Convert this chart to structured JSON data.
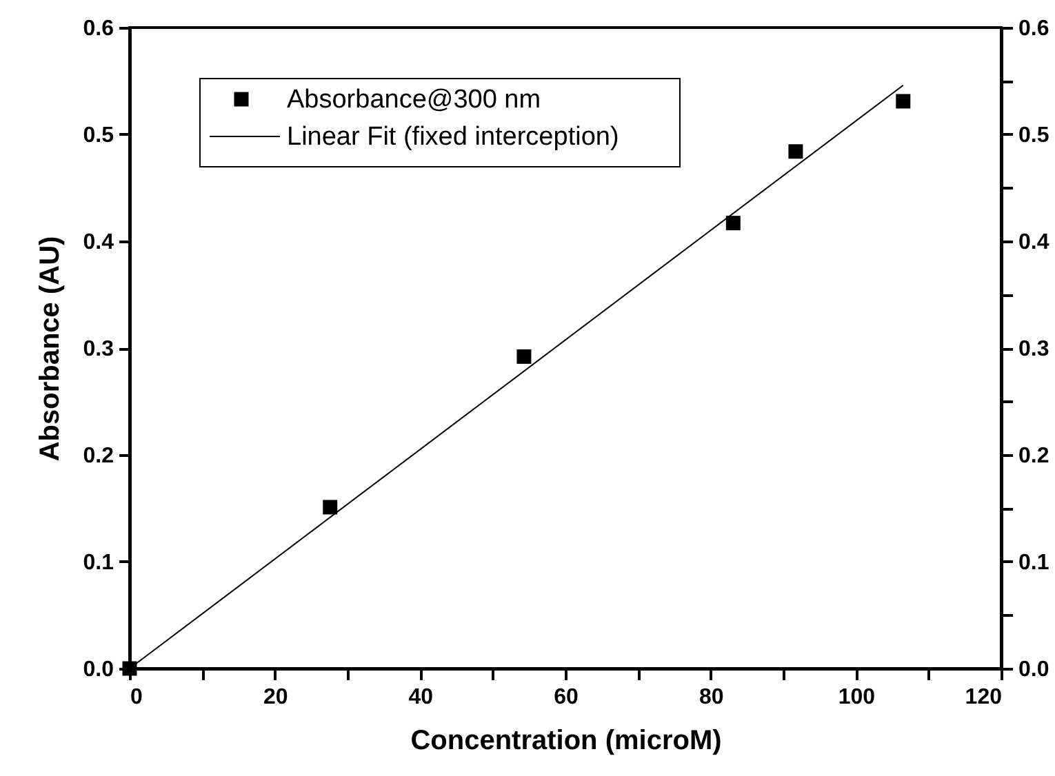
{
  "chart_data": {
    "type": "scatter",
    "xlabel": "Concentration (microM)",
    "ylabel": "Absorbance (AU)",
    "xlim": [
      0,
      120
    ],
    "ylim": [
      0,
      0.6
    ],
    "y2lim": [
      0,
      0.6
    ],
    "xticks": [
      0,
      {
        "value": 10,
        "label": null
      },
      20,
      {
        "value": 30,
        "label": null
      },
      40,
      {
        "value": 50,
        "label": null
      },
      60,
      {
        "value": 70,
        "label": null
      },
      80,
      {
        "value": 90,
        "label": null
      },
      100,
      {
        "value": 110,
        "label": null
      },
      120
    ],
    "yticks": [
      {
        "value": 0,
        "label": "0.0"
      },
      {
        "value": 0.05,
        "label": null
      },
      0.1,
      {
        "value": 0.15,
        "label": null
      },
      0.2,
      {
        "value": 0.25,
        "label": null
      },
      0.3,
      {
        "value": 0.35,
        "label": null
      },
      0.4,
      {
        "value": 0.45,
        "label": null
      },
      0.5,
      {
        "value": 0.55,
        "label": null
      },
      0.6
    ],
    "y2ticks": [
      {
        "value": 0,
        "label": "0.0"
      },
      {
        "value": 0.05,
        "label": null
      },
      0.1,
      {
        "value": 0.15,
        "label": null
      },
      0.2,
      {
        "value": 0.25,
        "label": null
      },
      0.3,
      {
        "value": 0.35,
        "label": null
      },
      0.4,
      {
        "value": 0.45,
        "label": null
      },
      0.5,
      {
        "value": 0.55,
        "label": null
      },
      0.6
    ],
    "series": [
      {
        "name": "Absorbance@300 nm",
        "marker": "square",
        "color": "#000000",
        "x": [
          0,
          27.6,
          54.3,
          83.1,
          91.7,
          106.5
        ],
        "values": [
          0,
          0.151,
          0.292,
          0.417,
          0.484,
          0.531
        ]
      },
      {
        "name": "Linear Fit (fixed interception)",
        "type": "line",
        "line_style": "solid",
        "color": "#000000",
        "x": [
          0,
          106.5
        ],
        "values": [
          0,
          0.546
        ]
      }
    ],
    "legend": "top left",
    "grid": false
  }
}
